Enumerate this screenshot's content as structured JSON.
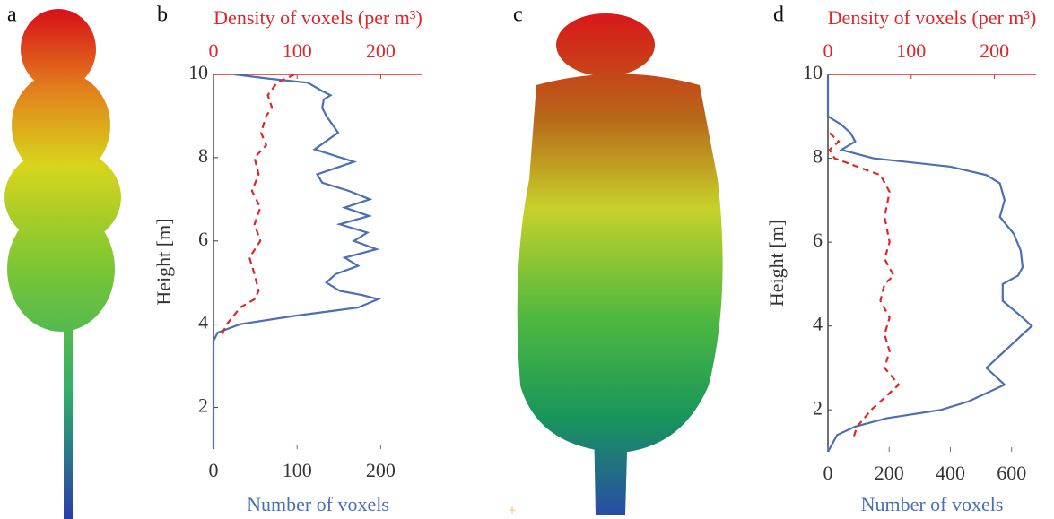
{
  "panel_labels": [
    "a",
    "b",
    "c",
    "d"
  ],
  "chart_data": [
    {
      "type": "line",
      "ylabel": "Height [m]",
      "xlabel": "Number of voxels",
      "x2label": "Density of voxels (per m³)",
      "xlim": [
        0,
        250
      ],
      "xticks": [
        0,
        100,
        200
      ],
      "x2lim": [
        0,
        250
      ],
      "x2ticks": [
        0,
        100,
        200
      ],
      "ylim": [
        1,
        10
      ],
      "yticks": [
        2,
        4,
        6,
        8,
        10
      ],
      "series": [
        {
          "color": "#4a6fb5",
          "values": [
            25,
            65,
            113,
            130,
            140,
            132,
            130,
            135,
            149,
            135,
            121,
            168,
            124,
            130,
            162,
            187,
            157,
            186,
            151,
            184,
            168,
            195,
            157,
            173,
            146,
            135,
            151,
            178,
            197,
            173,
            97,
            32,
            5,
            0,
            0
          ],
          "heights": [
            10,
            9.9,
            9.8,
            9.6,
            9.5,
            9.4,
            9.2,
            9.0,
            8.6,
            8.4,
            8.2,
            7.9,
            7.6,
            7.4,
            7.2,
            7.0,
            6.8,
            6.6,
            6.4,
            6.2,
            6.0,
            5.8,
            5.6,
            5.4,
            5.2,
            5.0,
            4.8,
            4.7,
            4.6,
            4.4,
            4.2,
            4.0,
            3.8,
            3.6,
            1.0
          ]
        },
        {
          "color": "#e0262b",
          "dash": true,
          "axis": "x2",
          "values": [
            97,
            76,
            65,
            70,
            63,
            57,
            63,
            49,
            54,
            46,
            56,
            49,
            56,
            43,
            49,
            54,
            49,
            32,
            24,
            16,
            11,
            16
          ],
          "heights": [
            10,
            9.8,
            9.5,
            9.2,
            9.0,
            8.6,
            8.3,
            8.0,
            7.6,
            7.2,
            6.8,
            6.4,
            6.0,
            5.6,
            5.2,
            4.8,
            4.6,
            4.4,
            4.2,
            4.0,
            3.8,
            3.7
          ]
        }
      ]
    },
    {
      "type": "line",
      "ylabel": "Height [m]",
      "xlabel": "Number of voxels",
      "x2label": "Density of voxels (per m³)",
      "xlim": [
        0,
        680
      ],
      "xticks": [
        0,
        200,
        400,
        600
      ],
      "x2lim": [
        0,
        250
      ],
      "x2ticks": [
        0,
        100,
        200
      ],
      "ylim": [
        1,
        10
      ],
      "yticks": [
        2,
        4,
        6,
        8,
        10
      ],
      "series": [
        {
          "color": "#4a6fb5",
          "values": [
            0,
            0,
            44,
            74,
            89,
            44,
            148,
            400,
            518,
            562,
            577,
            562,
            607,
            630,
            636,
            621,
            571,
            571,
            636,
            666,
            636,
            577,
            518,
            577,
            459,
            370,
            192,
            89,
            30,
            0
          ],
          "heights": [
            10,
            9.0,
            8.8,
            8.6,
            8.4,
            8.2,
            8.0,
            7.8,
            7.6,
            7.4,
            7.0,
            6.6,
            6.2,
            5.8,
            5.4,
            5.2,
            5.0,
            4.6,
            4.2,
            4.0,
            3.8,
            3.4,
            3.0,
            2.6,
            2.2,
            2.0,
            1.8,
            1.6,
            1.4,
            1.0
          ]
        },
        {
          "color": "#e0262b",
          "dash": true,
          "axis": "x2",
          "values": [
            2,
            13,
            2,
            8,
            35,
            63,
            74,
            68,
            74,
            68,
            79,
            68,
            63,
            74,
            68,
            74,
            68,
            85,
            74,
            52,
            35,
            30
          ],
          "heights": [
            8.6,
            8.4,
            8.2,
            8.0,
            7.8,
            7.6,
            7.2,
            6.6,
            6.0,
            5.6,
            5.2,
            5.0,
            4.6,
            4.2,
            3.8,
            3.4,
            3.0,
            2.6,
            2.4,
            2.0,
            1.6,
            1.3
          ]
        }
      ]
    }
  ]
}
